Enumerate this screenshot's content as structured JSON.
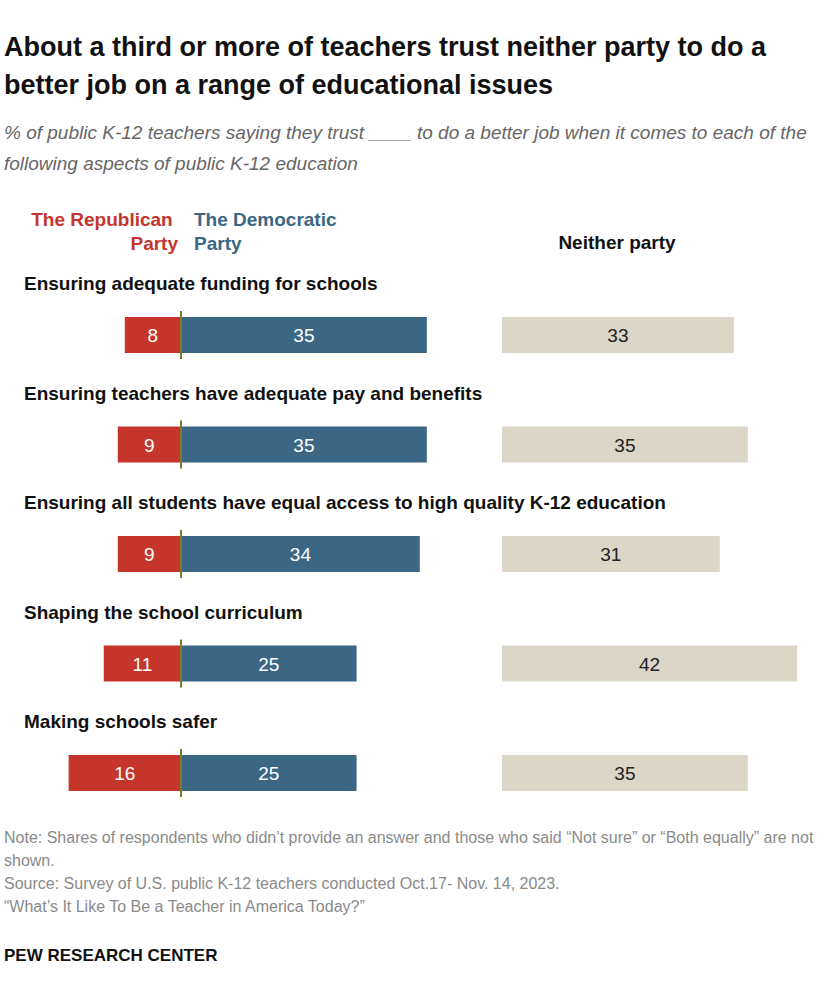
{
  "chart_data": {
    "type": "bar",
    "orientation": "horizontal",
    "title": "About a third or more of teachers trust neither party to do a better job on a range of educational issues",
    "subtitle": "% of public K-12 teachers saying they trust ____ to do a better job when it comes to each of the following aspects of public K-12 education",
    "categories": [
      "Ensuring adequate funding for schools",
      "Ensuring teachers have adequate pay and benefits",
      "Ensuring all students have equal access to high quality K-12 education",
      "Shaping the school curriculum",
      "Making schools safer"
    ],
    "series": [
      {
        "name": "The Republican Party",
        "color": "#c5352b",
        "values": [
          8,
          9,
          9,
          11,
          16
        ]
      },
      {
        "name": "The Democratic Party",
        "color": "#3b6784",
        "values": [
          35,
          35,
          34,
          25,
          25
        ]
      },
      {
        "name": "Neither party",
        "color": "#dcd6c8",
        "values": [
          33,
          35,
          31,
          42,
          35
        ]
      }
    ],
    "data_labels": true,
    "tick_labels": false,
    "annotations": [
      "Note: Shares of respondents who didn’t provide an answer and those who said “Not sure” or “Both equally” are not shown.",
      "Source: Survey of U.S. public K-12 teachers conducted Oct.17- Nov. 14, 2023.",
      "“What’s It Like To Be a Teacher in America Today?”",
      "PEW RESEARCH CENTER"
    ]
  }
}
